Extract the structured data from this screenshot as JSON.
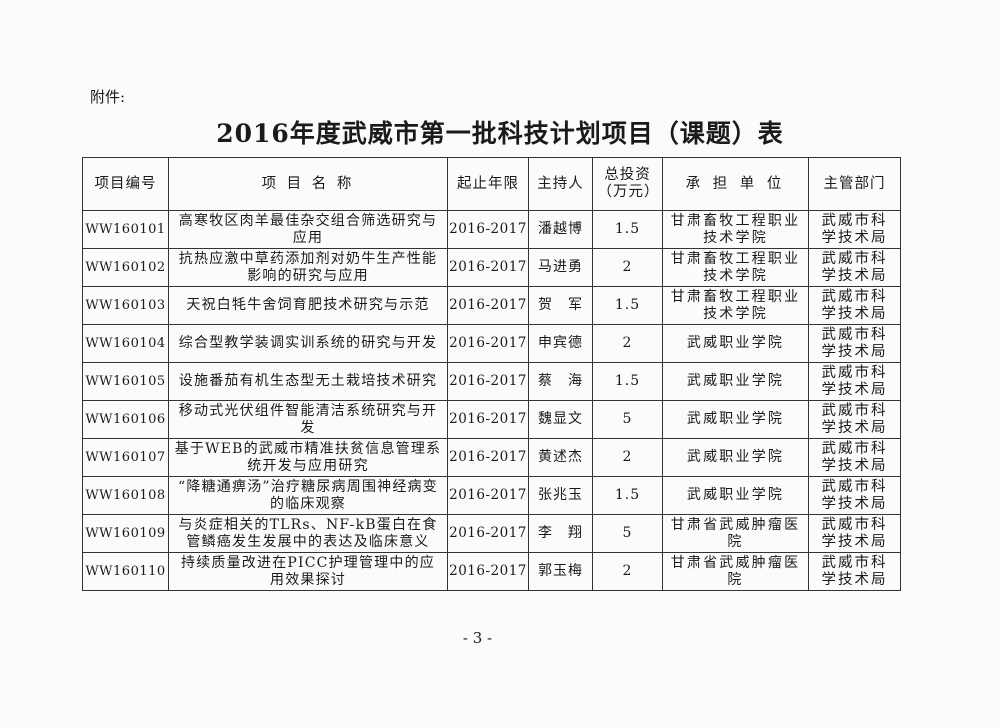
{
  "attachment_label": "附件:",
  "title": "2016年度武威市第一批科技计划项目（课题）表",
  "table": {
    "headers": [
      "项目编号",
      "项 目 名 称",
      "起止年限",
      "主持人",
      "总投资（万元）",
      "承 担 单 位",
      "主管部门"
    ],
    "rows": [
      {
        "code": "WW160101",
        "name": "高寒牧区肉羊最佳杂交组合筛选研究与应用",
        "years": "2016-2017",
        "leader": "潘越博",
        "investment": "1.5",
        "unit": "甘肃畜牧工程职业技术学院",
        "dept": "武威市科学技术局"
      },
      {
        "code": "WW160102",
        "name": "抗热应激中草药添加剂对奶牛生产性能影响的研究与应用",
        "years": "2016-2017",
        "leader": "马进勇",
        "investment": "2",
        "unit": "甘肃畜牧工程职业技术学院",
        "dept": "武威市科学技术局"
      },
      {
        "code": "WW160103",
        "name": "天祝白牦牛舍饲育肥技术研究与示范",
        "years": "2016-2017",
        "leader": "贺　军",
        "investment": "1.5",
        "unit": "甘肃畜牧工程职业技术学院",
        "dept": "武威市科学技术局"
      },
      {
        "code": "WW160104",
        "name": "综合型教学装调实训系统的研究与开发",
        "years": "2016-2017",
        "leader": "申宾德",
        "investment": "2",
        "unit": "武威职业学院",
        "dept": "武威市科学技术局"
      },
      {
        "code": "WW160105",
        "name": "设施番茄有机生态型无土栽培技术研究",
        "years": "2016-2017",
        "leader": "蔡　海",
        "investment": "1.5",
        "unit": "武威职业学院",
        "dept": "武威市科学技术局"
      },
      {
        "code": "WW160106",
        "name": "移动式光伏组件智能清洁系统研究与开发",
        "years": "2016-2017",
        "leader": "魏显文",
        "investment": "5",
        "unit": "武威职业学院",
        "dept": "武威市科学技术局"
      },
      {
        "code": "WW160107",
        "name": "基于WEB的武威市精准扶贫信息管理系统开发与应用研究",
        "years": "2016-2017",
        "leader": "黄述杰",
        "investment": "2",
        "unit": "武威职业学院",
        "dept": "武威市科学技术局"
      },
      {
        "code": "WW160108",
        "name": "“降糖通痹汤”治疗糖尿病周围神经病变的临床观察",
        "years": "2016-2017",
        "leader": "张兆玉",
        "investment": "1.5",
        "unit": "武威职业学院",
        "dept": "武威市科学技术局"
      },
      {
        "code": "WW160109",
        "name": "与炎症相关的TLRs、NF-kB蛋白在食管鳞癌发生发展中的表达及临床意义",
        "years": "2016-2017",
        "leader": "李　翔",
        "investment": "5",
        "unit": "甘肃省武威肿瘤医院",
        "dept": "武威市科学技术局"
      },
      {
        "code": "WW160110",
        "name": "持续质量改进在PICC护理管理中的应用效果探讨",
        "years": "2016-2017",
        "leader": "郭玉梅",
        "investment": "2",
        "unit": "甘肃省武威肿瘤医院",
        "dept": "武威市科学技术局"
      }
    ]
  },
  "page_number": "- 3 -"
}
